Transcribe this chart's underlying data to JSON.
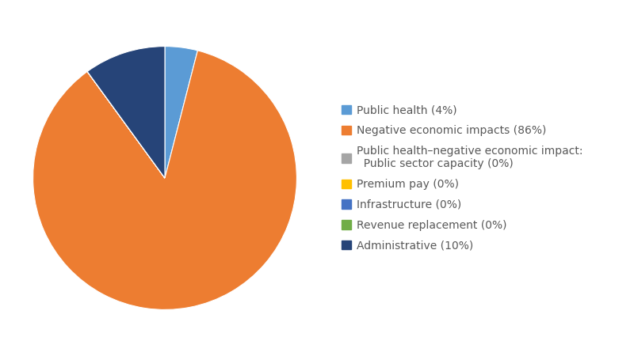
{
  "labels": [
    "Public health (4%)",
    "Negative economic impacts (86%)",
    "Public health–negative economic impact:\n  Public sector capacity (0%)",
    "Premium pay (0%)",
    "Infrastructure (0%)",
    "Revenue replacement (0%)",
    "Administrative (10%)"
  ],
  "values": [
    4,
    86,
    0.001,
    0.001,
    0.001,
    0.001,
    10
  ],
  "colors": [
    "#5B9BD5",
    "#ED7D31",
    "#A5A5A5",
    "#FFC000",
    "#4472C4",
    "#70AD47",
    "#264478"
  ],
  "startangle": 90,
  "background_color": "#FFFFFF",
  "legend_fontsize": 10.0,
  "text_color": "#595959"
}
